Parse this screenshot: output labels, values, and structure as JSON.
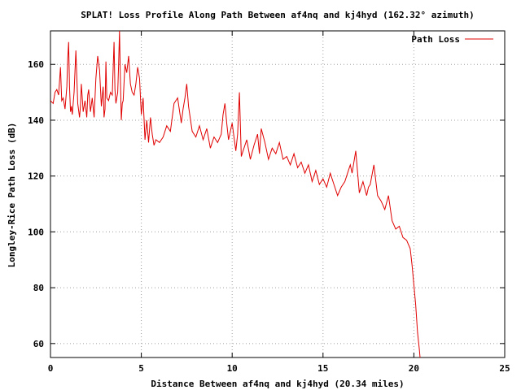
{
  "chart_data": {
    "type": "line",
    "title": "SPLAT! Loss Profile Along Path Between af4nq and kj4hyd (162.32° azimuth)",
    "xlabel": "Distance Between af4nq and kj4hyd (20.34 miles)",
    "ylabel": "Longley-Rice Path Loss (dB)",
    "xlim": [
      0,
      25
    ],
    "ylim": [
      55,
      172
    ],
    "x_ticks": [
      "0",
      "5",
      "10",
      "15",
      "20",
      "25"
    ],
    "y_ticks": [
      "60",
      "80",
      "100",
      "120",
      "140",
      "160"
    ],
    "grid": true,
    "legend_position": "top-right",
    "series": [
      {
        "name": "Path Loss",
        "color": "#e00000",
        "x": [
          0.0,
          0.15,
          0.25,
          0.35,
          0.45,
          0.55,
          0.62,
          0.7,
          0.8,
          0.9,
          0.95,
          1.0,
          1.05,
          1.1,
          1.15,
          1.2,
          1.3,
          1.4,
          1.5,
          1.6,
          1.65,
          1.7,
          1.8,
          1.9,
          2.0,
          2.05,
          2.1,
          2.2,
          2.3,
          2.4,
          2.5,
          2.6,
          2.7,
          2.8,
          2.9,
          2.95,
          3.0,
          3.05,
          3.1,
          3.2,
          3.3,
          3.4,
          3.5,
          3.55,
          3.6,
          3.7,
          3.75,
          3.8,
          3.85,
          3.9,
          3.95,
          4.0,
          4.1,
          4.2,
          4.3,
          4.4,
          4.5,
          4.6,
          4.7,
          4.8,
          4.9,
          5.0,
          5.1,
          5.2,
          5.3,
          5.4,
          5.5,
          5.6,
          5.7,
          5.8,
          6.0,
          6.2,
          6.4,
          6.6,
          6.8,
          7.0,
          7.2,
          7.3,
          7.4,
          7.5,
          7.6,
          7.8,
          8.0,
          8.2,
          8.4,
          8.6,
          8.8,
          9.0,
          9.2,
          9.4,
          9.5,
          9.6,
          9.7,
          9.8,
          10.0,
          10.1,
          10.2,
          10.3,
          10.4,
          10.5,
          10.6,
          10.8,
          11.0,
          11.2,
          11.4,
          11.5,
          11.6,
          11.8,
          12.0,
          12.2,
          12.4,
          12.6,
          12.8,
          13.0,
          13.2,
          13.4,
          13.6,
          13.8,
          14.0,
          14.2,
          14.4,
          14.6,
          14.8,
          15.0,
          15.2,
          15.4,
          15.6,
          15.8,
          16.0,
          16.2,
          16.4,
          16.5,
          16.6,
          16.8,
          17.0,
          17.2,
          17.4,
          17.5,
          17.6,
          17.8,
          18.0,
          18.2,
          18.4,
          18.6,
          18.8,
          19.0,
          19.2,
          19.4,
          19.6,
          19.8,
          19.9,
          20.0,
          20.1,
          20.2,
          20.3,
          20.34
        ],
        "values": [
          147,
          146,
          150,
          151,
          149,
          159,
          147,
          148,
          144,
          152,
          162,
          168,
          152,
          143,
          145,
          142,
          150,
          165,
          146,
          141,
          145,
          153,
          143,
          147,
          141,
          149,
          151,
          143,
          148,
          141,
          155,
          163,
          158,
          145,
          152,
          141,
          144,
          161,
          148,
          147,
          150,
          149,
          168,
          151,
          146,
          150,
          160,
          172,
          155,
          140,
          146,
          147,
          160,
          157,
          163,
          153,
          150,
          149,
          153,
          159,
          155,
          142,
          148,
          133,
          140,
          132,
          141,
          135,
          131,
          133,
          132,
          134,
          138,
          136,
          146,
          148,
          139,
          144,
          148,
          153,
          145,
          136,
          134,
          138,
          133,
          137,
          130,
          134,
          132,
          135,
          142,
          146,
          139,
          133,
          139,
          134,
          129,
          135,
          150,
          127,
          129,
          133,
          126,
          131,
          135,
          128,
          137,
          132,
          126,
          130,
          128,
          132,
          126,
          127,
          124,
          128,
          123,
          125,
          121,
          124,
          118,
          122,
          117,
          119,
          116,
          121,
          117,
          113,
          116,
          118,
          122,
          124,
          121,
          129,
          114,
          118,
          113,
          116,
          117,
          124,
          113,
          111,
          108,
          113,
          104,
          101,
          102,
          98,
          97,
          94,
          88,
          81,
          74,
          64,
          58,
          55
        ],
        "style": "line"
      }
    ]
  }
}
